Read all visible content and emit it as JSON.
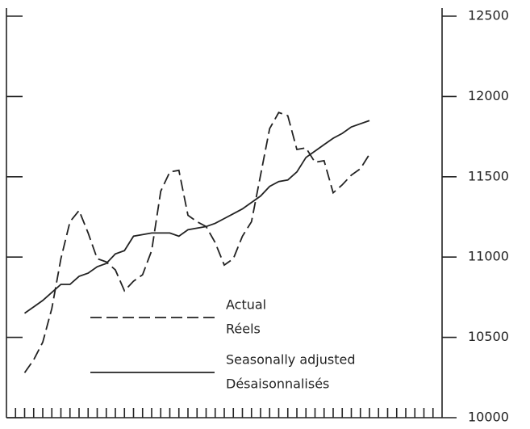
{
  "chart_data": {
    "type": "line",
    "x": [
      2,
      3,
      4,
      5,
      6,
      7,
      8,
      9,
      10,
      11,
      12,
      13,
      14,
      15,
      16,
      17,
      18,
      19,
      20,
      21,
      22,
      23,
      24,
      25,
      26,
      27,
      28,
      29,
      30,
      31,
      32,
      33,
      34,
      35,
      36,
      37,
      38,
      39,
      40
    ],
    "series": [
      {
        "name": "Actual",
        "name_alt": "Réels",
        "color": "#222222",
        "dash": true,
        "values": [
          10280,
          10360,
          10470,
          10680,
          10990,
          11220,
          11290,
          11150,
          10990,
          10970,
          10920,
          10790,
          10850,
          10890,
          11040,
          11410,
          11530,
          11540,
          11260,
          11220,
          11190,
          11090,
          10950,
          10990,
          11130,
          11220,
          11510,
          11800,
          11900,
          11880,
          11670,
          11680,
          11590,
          11600,
          11400,
          11450,
          11510,
          11550,
          11640
        ]
      },
      {
        "name": "Seasonally adjusted",
        "name_alt": "Désaisonnalisés",
        "color": "#222222",
        "dash": false,
        "values": [
          10650,
          10690,
          10730,
          10780,
          10830,
          10830,
          10880,
          10900,
          10940,
          10960,
          11020,
          11040,
          11130,
          11140,
          11150,
          11150,
          11150,
          11130,
          11170,
          11180,
          11190,
          11210,
          11240,
          11270,
          11300,
          11340,
          11380,
          11440,
          11470,
          11480,
          11530,
          11620,
          11660,
          11700,
          11740,
          11770,
          11810,
          11830,
          11850
        ]
      }
    ],
    "xlim": [
      0,
      48
    ],
    "xticks": [
      1,
      2,
      3,
      4,
      5,
      6,
      7,
      8,
      9,
      10,
      11,
      12,
      13,
      14,
      15,
      16,
      17,
      18,
      19,
      20,
      21,
      22,
      23,
      24,
      25,
      26,
      27,
      28,
      29,
      30,
      31,
      32,
      33,
      34,
      35,
      36,
      37,
      38,
      39,
      40,
      41,
      42,
      43,
      44,
      45,
      46,
      47
    ],
    "ylim": [
      10000,
      12500
    ],
    "yticks": [
      10000,
      10500,
      11000,
      11500,
      12000,
      12500
    ],
    "y_axis_side": "right"
  }
}
